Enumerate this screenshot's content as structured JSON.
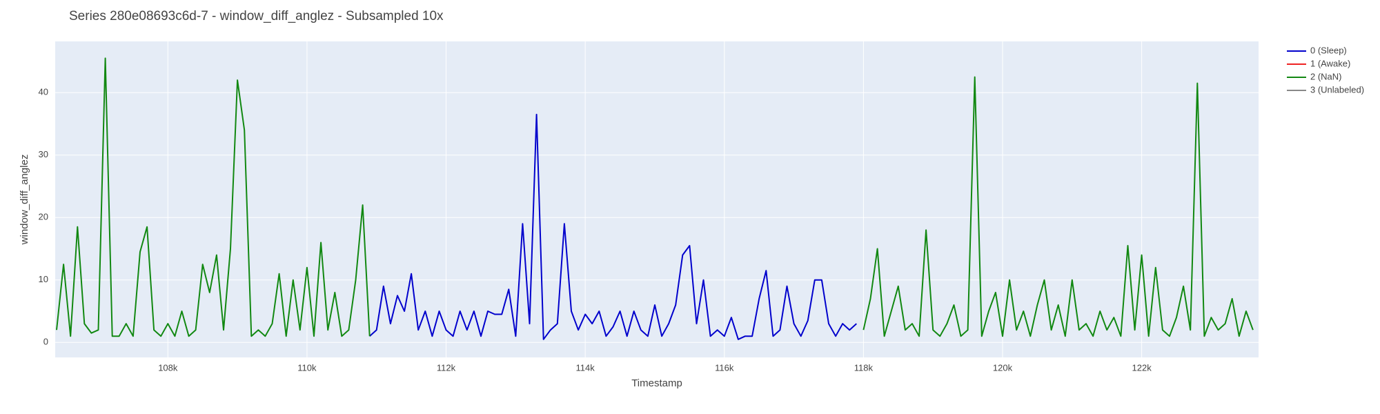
{
  "chart_data": {
    "type": "line",
    "title": "Series 280e08693c6d-7 - window_diff_anglez - Subsampled 10x",
    "x_label": "Timestamp",
    "y_label": "window_diff_anglez",
    "xlim": [
      106380,
      123680
    ],
    "ylim": [
      -2.4,
      48.2
    ],
    "xticks": [
      {
        "value": 108000,
        "label": "108k"
      },
      {
        "value": 110000,
        "label": "110k"
      },
      {
        "value": 112000,
        "label": "112k"
      },
      {
        "value": 114000,
        "label": "114k"
      },
      {
        "value": 116000,
        "label": "116k"
      },
      {
        "value": 118000,
        "label": "118k"
      },
      {
        "value": 120000,
        "label": "120k"
      },
      {
        "value": 122000,
        "label": "122k"
      }
    ],
    "yticks": [
      0,
      10,
      20,
      30,
      40
    ],
    "grid": true,
    "legend": "right",
    "series": [
      {
        "name": "0 (Sleep)",
        "color": "#0000cc",
        "x": [
          110900,
          111000,
          111100,
          111200,
          111300,
          111400,
          111500,
          111600,
          111700,
          111800,
          111900,
          112000,
          112100,
          112200,
          112300,
          112400,
          112500,
          112600,
          112700,
          112800,
          112900,
          113000,
          113100,
          113200,
          113300,
          113400,
          113500,
          113600,
          113700,
          113800,
          113900,
          114000,
          114100,
          114200,
          114300,
          114400,
          114500,
          114600,
          114700,
          114800,
          114900,
          115000,
          115100,
          115200,
          115300,
          115400,
          115500,
          115600,
          115700,
          115800,
          115900,
          116000,
          116100,
          116200,
          116300,
          116400,
          116500,
          116600,
          116700,
          116800,
          116900,
          117000,
          117100,
          117200,
          117300,
          117400,
          117500,
          117600,
          117700,
          117800,
          117900
        ],
        "values": [
          1,
          2,
          9,
          3,
          7.5,
          5,
          11,
          2,
          5,
          1,
          5,
          2,
          1,
          5,
          2,
          5,
          1,
          5,
          4.5,
          4.5,
          8.5,
          1,
          19,
          3,
          36.5,
          0.5,
          2,
          3,
          19,
          5,
          2,
          4.5,
          3,
          5,
          1,
          2.5,
          5,
          1,
          5,
          2,
          1,
          6,
          1,
          3,
          6,
          14,
          15.5,
          3,
          10,
          1,
          2,
          1,
          4,
          0.5,
          1,
          1,
          7,
          11.5,
          1,
          2,
          9,
          3,
          1,
          3.5,
          10,
          10,
          3,
          1,
          3,
          2,
          3
        ]
      },
      {
        "name": "1 (Awake)",
        "color": "#ee2222",
        "x": [],
        "values": []
      },
      {
        "name": "2 (NaN)",
        "color": "#118811",
        "x": [
          106400,
          106500,
          106600,
          106700,
          106800,
          106900,
          107000,
          107100,
          107200,
          107300,
          107400,
          107500,
          107600,
          107700,
          107800,
          107900,
          108000,
          108100,
          108200,
          108300,
          108400,
          108500,
          108600,
          108700,
          108800,
          108900,
          109000,
          109100,
          109200,
          109300,
          109400,
          109500,
          109600,
          109700,
          109800,
          109900,
          110000,
          110100,
          110200,
          110300,
          110400,
          110500,
          110600,
          110700,
          110800,
          110900,
          114400,
          118000,
          118100,
          118200,
          118300,
          118400,
          118500,
          118600,
          118700,
          118800,
          118900,
          119000,
          119100,
          119200,
          119300,
          119400,
          119500,
          119600,
          119700,
          119800,
          119900,
          120000,
          120100,
          120200,
          120300,
          120400,
          120500,
          120600,
          120700,
          120800,
          120900,
          121000,
          121100,
          121200,
          121300,
          121400,
          121500,
          121600,
          121700,
          121800,
          121900,
          122000,
          122100,
          122200,
          122300,
          122400,
          122500,
          122600,
          122700,
          122800,
          122900,
          123000,
          123100,
          123200,
          123300,
          123400,
          123500,
          123600
        ],
        "values": [
          2,
          12.5,
          1,
          18.5,
          3,
          1.5,
          2,
          45.5,
          1,
          1,
          3,
          1,
          14.5,
          18.5,
          2,
          1,
          3,
          1,
          5,
          1,
          2,
          12.5,
          8,
          14,
          2,
          15,
          42,
          34,
          1,
          2,
          1,
          3,
          11,
          1,
          10,
          2,
          12,
          1,
          16,
          2,
          8,
          1,
          2,
          10,
          22,
          1,
          null,
          2,
          7,
          15,
          1,
          5,
          9,
          2,
          3,
          1,
          18,
          2,
          1,
          3,
          6,
          1,
          2,
          42.5,
          1,
          5,
          8,
          1,
          10,
          2,
          5,
          1,
          6,
          10,
          2,
          6,
          1,
          10,
          2,
          3,
          1,
          5,
          2,
          4,
          1,
          15.5,
          2,
          14,
          1,
          12,
          2,
          1,
          4,
          9,
          2,
          41.5,
          1,
          4,
          2,
          3,
          7,
          1,
          5,
          2
        ]
      },
      {
        "name": "3 (Unlabeled)",
        "color": "#888888",
        "x": [],
        "values": []
      }
    ]
  }
}
